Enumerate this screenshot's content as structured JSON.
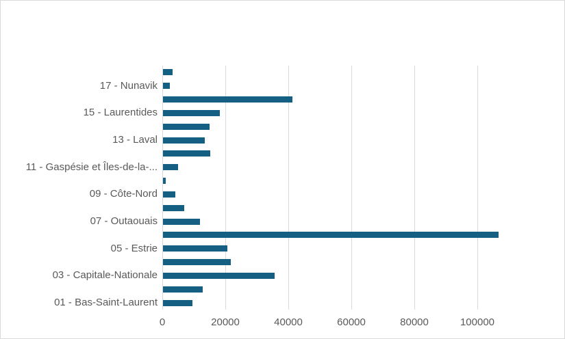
{
  "chart": {
    "background_color": "#ffffff",
    "border_color": "#d9d9d9",
    "bar_color": "#156082",
    "gridline_color": "#d9d9d9",
    "axis_line_color": "#d9d9d9",
    "label_color": "#595959"
  },
  "chart_data": {
    "type": "bar",
    "orientation": "horizontal",
    "title": "",
    "xlabel": "",
    "ylabel": "",
    "legend": "none",
    "grid": "vertical-only",
    "xlim": [
      0,
      110000
    ],
    "x_ticks": [
      0,
      20000,
      40000,
      60000,
      80000,
      100000
    ],
    "x_tick_labels": [
      "0",
      "20000",
      "40000",
      "60000",
      "80000",
      "100000"
    ],
    "note": "18 horizontal bars top-to-bottom; only every second category has a visible axis label",
    "categories": [
      "",
      "17 - Nunavik",
      "",
      "15 - Laurentides",
      "",
      "13 - Laval",
      "",
      "11 - Gaspésie et Îles-de-la-...",
      "",
      "09 - Côte-Nord",
      "",
      "07 - Outaouais",
      "",
      "05 - Estrie",
      "",
      "03 - Capitale-Nationale",
      "",
      "01 - Bas-Saint-Laurent"
    ],
    "values": [
      3000,
      2100,
      41000,
      18000,
      14700,
      13300,
      15100,
      4700,
      900,
      4000,
      6700,
      11800,
      106500,
      20500,
      21500,
      35500,
      12500,
      9400
    ]
  }
}
